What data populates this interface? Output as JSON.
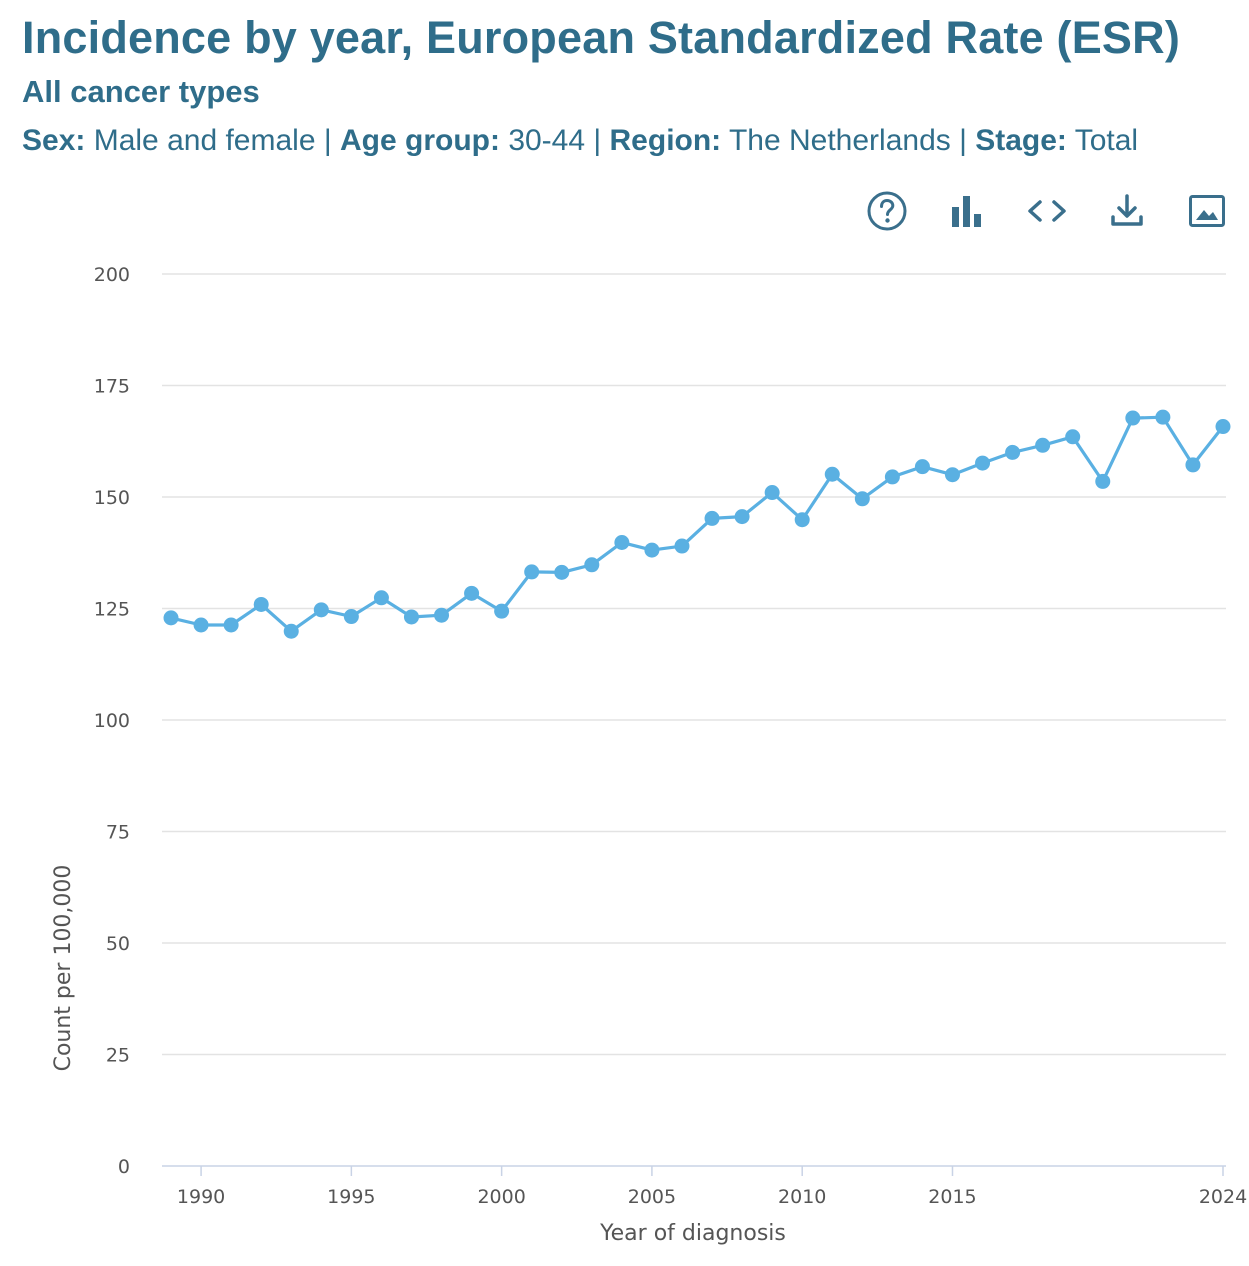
{
  "header": {
    "title": "Incidence by year, European Standardized Rate (ESR)",
    "subtitle": "All cancer types",
    "filters": [
      {
        "label": "Sex:",
        "value": "Male and female"
      },
      {
        "label": "Age group:",
        "value": "30-44"
      },
      {
        "label": "Region:",
        "value": "The Netherlands"
      },
      {
        "label": "Stage:",
        "value": "Total"
      }
    ],
    "separator": " | "
  },
  "toolbar": {
    "items": [
      {
        "name": "help",
        "icon": "help-circle-icon"
      },
      {
        "name": "bar-chart",
        "icon": "bar-chart-icon"
      },
      {
        "name": "embed",
        "icon": "code-icon"
      },
      {
        "name": "download",
        "icon": "download-icon"
      },
      {
        "name": "image",
        "icon": "image-icon"
      }
    ],
    "color": "#3a6f8c"
  },
  "chart_data": {
    "type": "line",
    "xlabel": "Year of diagnosis",
    "ylabel": "Count per 100,000",
    "ylim": [
      0,
      200
    ],
    "yticks": [
      0,
      25,
      50,
      75,
      100,
      125,
      150,
      175,
      200
    ],
    "xlim": [
      1988.7,
      2024.1
    ],
    "xticks": [
      1990,
      1995,
      2000,
      2005,
      2010,
      2015,
      2024
    ],
    "grid": "horizontal",
    "line_color": "#5ab0e2",
    "series": [
      {
        "x": [
          1989,
          1990,
          1991,
          1992,
          1993,
          1994,
          1995,
          1996,
          1997,
          1998,
          1999,
          2000,
          2001,
          2002,
          2003,
          2004,
          2005,
          2006,
          2007,
          2008,
          2009,
          2010,
          2011,
          2012,
          2013,
          2014,
          2015,
          2016,
          2017,
          2018,
          2019,
          2020,
          2021,
          2022,
          2023,
          2024
        ],
        "y": [
          122.9,
          121.3,
          121.3,
          125.9,
          119.9,
          124.7,
          123.2,
          127.4,
          123.1,
          123.5,
          128.4,
          124.4,
          133.2,
          133.1,
          134.8,
          139.8,
          138.1,
          139.0,
          145.2,
          145.6,
          151.0,
          144.9,
          155.1,
          149.6,
          154.5,
          156.8,
          155.0,
          157.6,
          160.0,
          161.6,
          163.5,
          153.5,
          167.7,
          167.9,
          157.2,
          165.8
        ]
      }
    ]
  }
}
